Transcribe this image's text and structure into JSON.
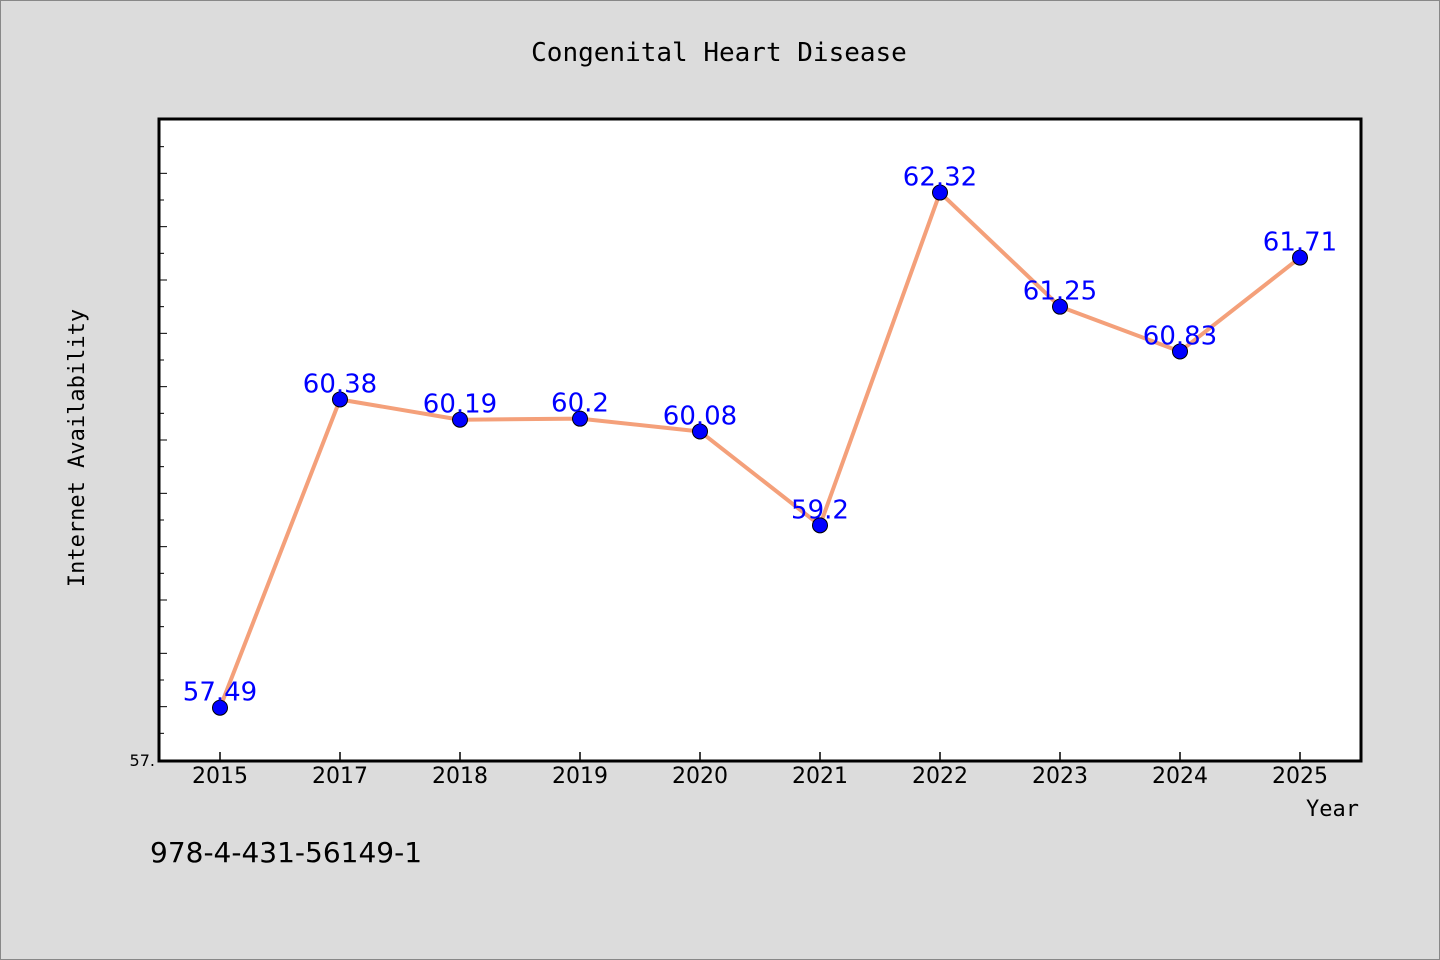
{
  "chart_data": {
    "type": "line",
    "title": "Congenital Heart Disease",
    "xlabel": "Year",
    "ylabel": "Internet Availability",
    "categories": [
      "2015",
      "2017",
      "2018",
      "2019",
      "2020",
      "2021",
      "2022",
      "2023",
      "2024",
      "2025"
    ],
    "series": [
      {
        "values": [
          57.49,
          60.38,
          60.19,
          60.2,
          60.08,
          59.2,
          62.32,
          61.25,
          60.83,
          61.71
        ],
        "labels": [
          "57.49",
          "60.38",
          "60.19",
          "60.2",
          "60.08",
          "59.2",
          "62.32",
          "61.25",
          "60.83",
          "61.71"
        ]
      }
    ],
    "ylim": [
      57.0,
      63.0
    ],
    "ytick_labels": [
      "57."
    ],
    "grid": false,
    "colors": {
      "line": "#f4a07a",
      "marker": "#0000ff",
      "data_label": "#0000ff",
      "plot_bg": "#ffffff",
      "figure_bg": "#dcdcdc"
    }
  },
  "annotation": {
    "isbn": "978-4-431-56149-1"
  }
}
